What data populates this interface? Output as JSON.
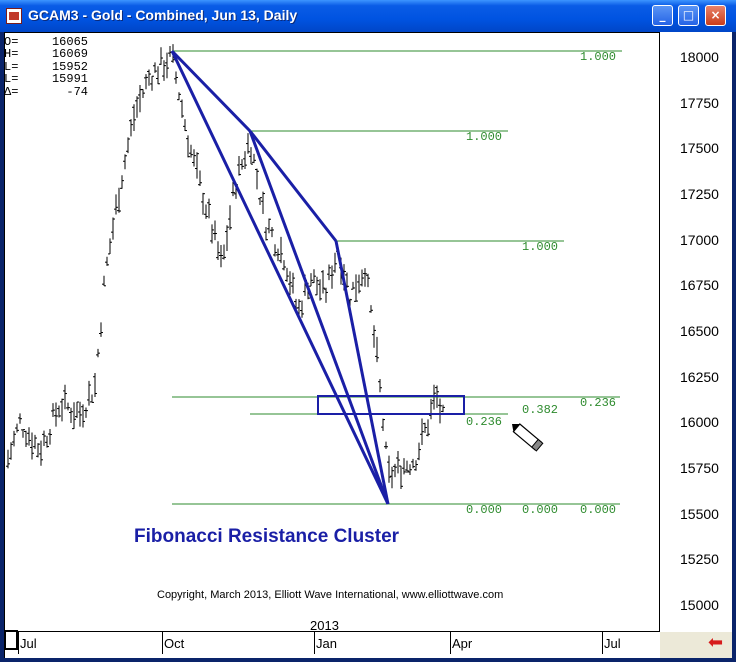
{
  "window": {
    "title": "GCAM3 - Gold - Combined, Jun 13, Daily",
    "controls": {
      "minimize": "_",
      "maximize": "□",
      "close": "×"
    }
  },
  "ohlc": [
    {
      "label": "O=",
      "value": "16065"
    },
    {
      "label": "H=",
      "value": "16069"
    },
    {
      "label": "L=",
      "value": "15952"
    },
    {
      "label": "L=",
      "value": "15991"
    },
    {
      "label": "Δ=",
      "value": "-74"
    }
  ],
  "chart_data": {
    "type": "bar",
    "title": "Fibonacci Resistance Cluster",
    "subtitle": "Copyright, March 2013, Elliott Wave International, www.elliottwave.com",
    "y_ticks": [
      "18000",
      "17750",
      "17500",
      "17250",
      "17000",
      "16750",
      "16500",
      "16250",
      "16000",
      "15750",
      "15500",
      "15250",
      "15000"
    ],
    "ylim": [
      14950,
      18100
    ],
    "x_ticks": [
      "Jul",
      "Oct",
      "Jan",
      "Apr",
      "Jul"
    ],
    "year_label": "2013",
    "fib_levels": [
      {
        "label": "1.000",
        "value": 18010
      },
      {
        "label": "1.000",
        "value": 17580
      },
      {
        "label": "1.000",
        "value": 16990
      },
      {
        "label": "0.236",
        "value": 16140
      },
      {
        "label": "0.382",
        "value": 16080
      },
      {
        "label": "0.236",
        "value": 16030
      },
      {
        "label": "0.000",
        "value": 15560
      },
      {
        "label": "0.000",
        "value": 15560
      },
      {
        "label": "0.000",
        "value": 15560
      }
    ],
    "resistance_zone": [
      16040,
      16140
    ]
  },
  "colors": {
    "fib": "#2e8b2e",
    "trend": "#1a1fa6",
    "title": "#1a1fa6",
    "arrow": "#d61b1b"
  },
  "icons": {
    "cursor": "pencil-cursor-icon",
    "nav": "red-arrow-icon"
  }
}
